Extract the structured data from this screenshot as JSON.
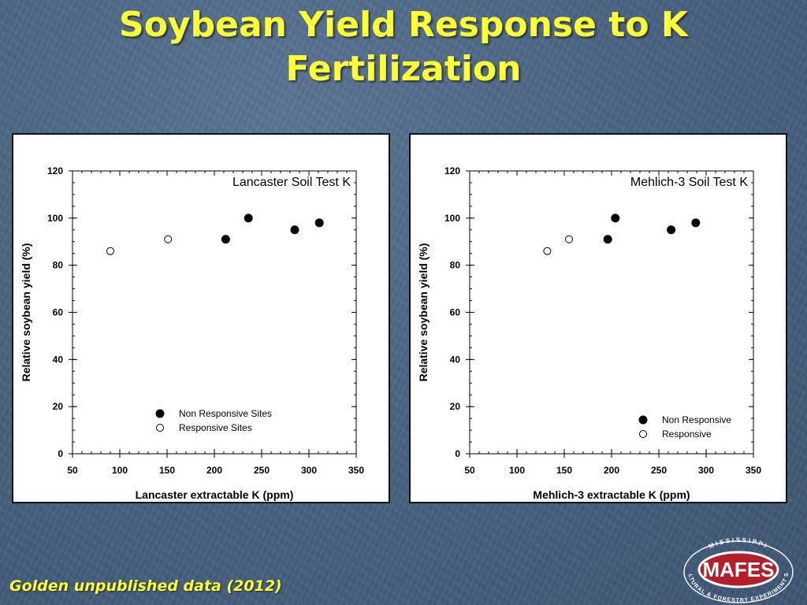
{
  "slide": {
    "title_line1": "Soybean Yield Response to K",
    "title_line2": "Fertilization",
    "source": "Golden unpublished data (2012)"
  },
  "logo": {
    "arc_top": "MISSISSIPPI",
    "word": "MAFES",
    "arc_bottom": "AGRICULTURAL & FORESTRY EXPERIMENT STATION",
    "colors": {
      "red": "#b3202a",
      "white": "#ffffff"
    }
  },
  "colors": {
    "title": "#ffff33",
    "panel_bg": "#ffffff",
    "marker": "#000000"
  },
  "chart_data": [
    {
      "type": "scatter",
      "title": "Lancaster Soil Test K",
      "xlabel": "Lancaster extractable K (ppm)",
      "ylabel": "Relative soybean yield (%)",
      "xlim": [
        50,
        350
      ],
      "ylim": [
        0,
        120
      ],
      "xticks": [
        50,
        100,
        150,
        200,
        250,
        300,
        350
      ],
      "yticks": [
        0,
        20,
        40,
        60,
        80,
        100,
        120
      ],
      "legend_position": "bottom-right",
      "series": [
        {
          "name": "Non Responsive Sites",
          "marker": "filled-circle",
          "points": [
            [
              212,
              91
            ],
            [
              236,
              100
            ],
            [
              285,
              95
            ],
            [
              311,
              98
            ]
          ]
        },
        {
          "name": "Responsive Sites",
          "marker": "open-circle",
          "points": [
            [
              90,
              86
            ],
            [
              151,
              91
            ]
          ]
        }
      ]
    },
    {
      "type": "scatter",
      "title": "Mehlich-3 Soil Test K",
      "xlabel": "Mehlich-3 extractable K (ppm)",
      "ylabel": "Relative soybean yield (%)",
      "xlim": [
        50,
        350
      ],
      "ylim": [
        0,
        120
      ],
      "xticks": [
        50,
        100,
        150,
        200,
        250,
        300,
        350
      ],
      "yticks": [
        0,
        20,
        40,
        60,
        80,
        100,
        120
      ],
      "legend_position": "bottom-right",
      "series": [
        {
          "name": "Non Responsive",
          "marker": "filled-circle",
          "points": [
            [
              196,
              91
            ],
            [
              204,
              100
            ],
            [
              263,
              95
            ],
            [
              289,
              98
            ]
          ]
        },
        {
          "name": "Responsive",
          "marker": "open-circle",
          "points": [
            [
              132,
              86
            ],
            [
              155,
              91
            ]
          ]
        }
      ]
    }
  ]
}
